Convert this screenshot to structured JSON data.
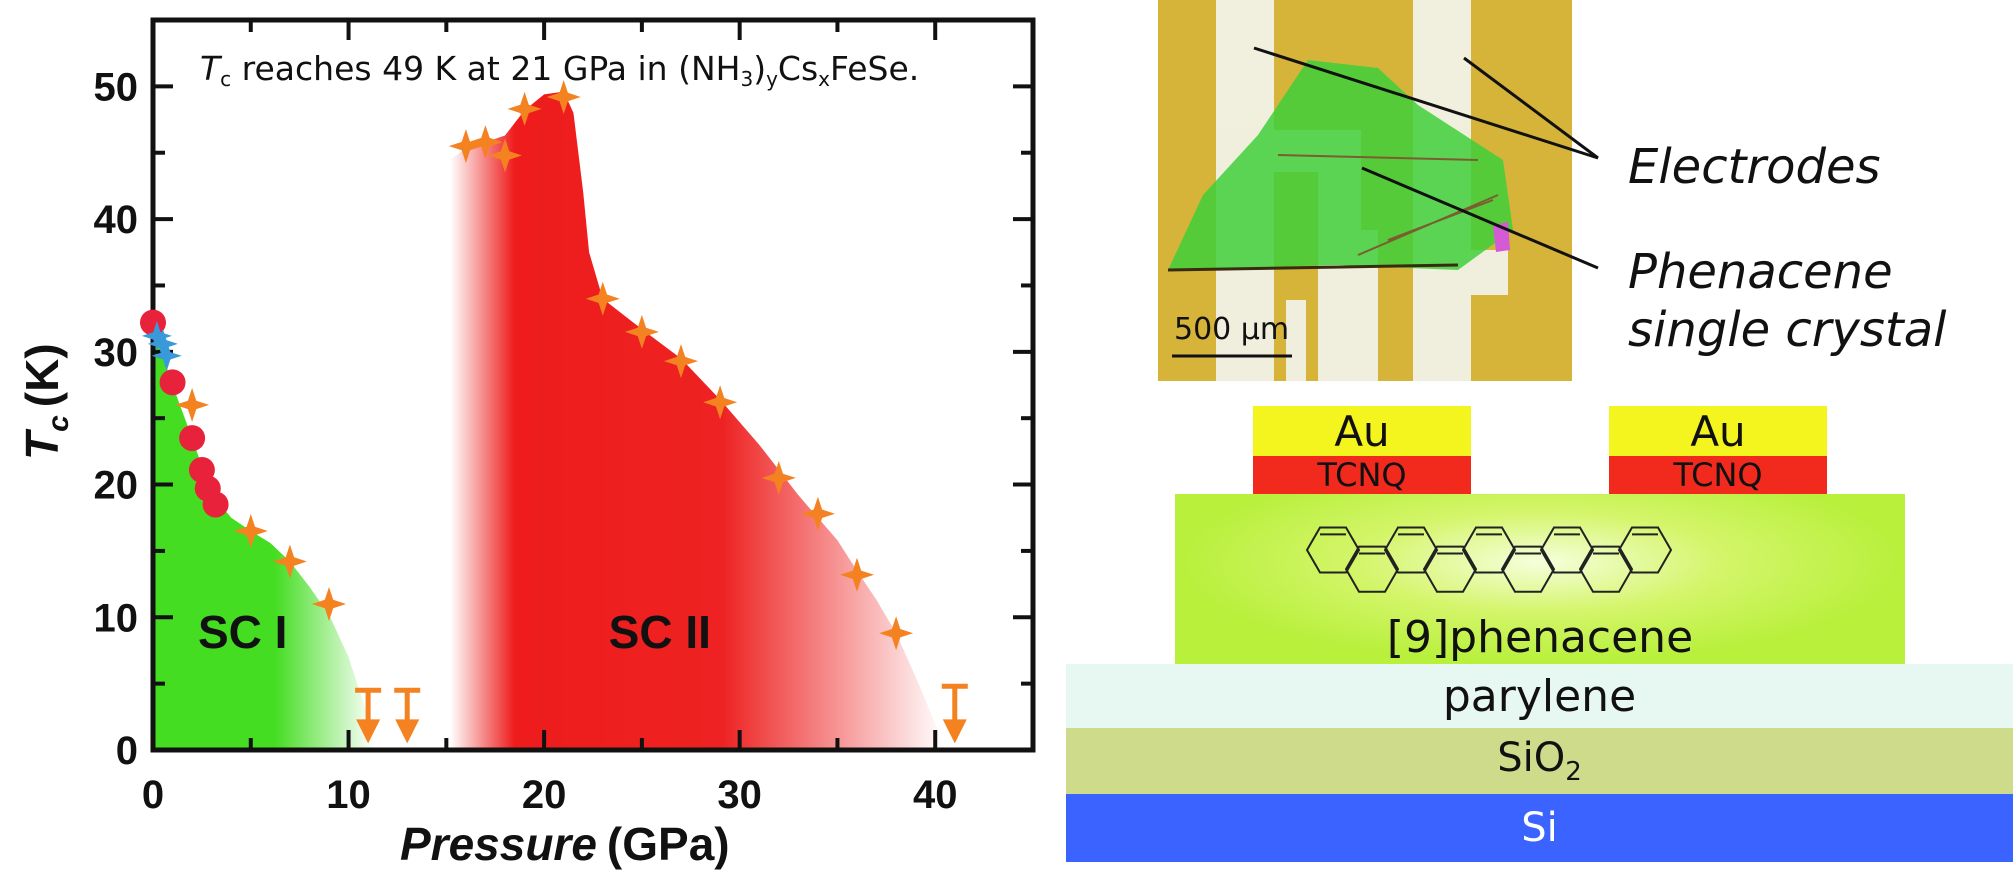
{
  "chart_data": {
    "type": "scatter",
    "title": "reaches 49 K at 21 GPa in (NH",
    "title_parts": {
      "tc_symbol": "T",
      "tc_subscript": "c",
      "text_1": " reaches 49 K at 21 GPa in (NH",
      "sub_3": "3",
      "close_paren": ")",
      "sub_y": "y",
      "cs": "Cs",
      "sub_x": "x",
      "formula_end": "FeSe."
    },
    "xlabel": "Pressure",
    "xlabel_unit": "(GPa)",
    "ylabel": "T",
    "ylabel_sub": "c",
    "ylabel_unit": "(K)",
    "xlim": [
      0,
      45
    ],
    "ylim": [
      0,
      55
    ],
    "x_ticks": [
      "0",
      "10",
      "20",
      "30",
      "40"
    ],
    "y_ticks": [
      "0",
      "10",
      "20",
      "30",
      "40",
      "50"
    ],
    "regions": [
      {
        "name": "SC I",
        "color": "#44dd22"
      },
      {
        "name": "SC II",
        "color": "#ee1c1c"
      }
    ],
    "series": [
      {
        "marker": "star",
        "color": "#f58220",
        "x": [
          2,
          5,
          7,
          9,
          16,
          17,
          18,
          19,
          21,
          23,
          25,
          27,
          29,
          32,
          34,
          36,
          38
        ],
        "values": [
          26,
          16.5,
          14.2,
          11,
          45.5,
          45.8,
          44.8,
          48.3,
          49.2,
          34,
          31.5,
          29.3,
          26.2,
          20.5,
          17.8,
          13.2,
          8.8
        ]
      },
      {
        "marker": "circle",
        "color": "#e8223a",
        "x": [
          0,
          1,
          2,
          2.5,
          2.8,
          3.2
        ],
        "values": [
          32.2,
          27.7,
          23.5,
          21.1,
          19.7,
          18.5
        ]
      },
      {
        "marker": "star",
        "color": "#3a9ad9",
        "x": [
          0.2,
          0.5,
          0.7
        ],
        "values": [
          31.2,
          30.6,
          29.7
        ]
      },
      {
        "marker": "upper-limit",
        "color": "#f58220",
        "x": [
          11,
          13,
          41
        ],
        "values": [
          4.5,
          4.5,
          4.8
        ]
      }
    ]
  },
  "photo": {
    "labels": {
      "electrodes": "Electrodes",
      "crystal_line1": "Phenacene",
      "crystal_line2": "single crystal"
    },
    "scale_bar": "500 μm"
  },
  "device": {
    "layers": {
      "au": "Au",
      "tcnq": "TCNQ",
      "phenacene": "[9]phenacene",
      "parylene": "parylene",
      "sio2_main": "SiO",
      "sio2_sub": "2",
      "si": "Si"
    },
    "colors": {
      "au": "#f4f41e",
      "tcnq": "#f22a1e",
      "phenacene": "#b8f03c",
      "parylene": "#e7f7f2",
      "sio2": "#cedb8a",
      "si": "#3b63ff"
    }
  }
}
